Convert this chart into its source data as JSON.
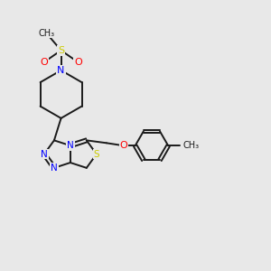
{
  "bg_color": "#e8e8e8",
  "bond_color": "#1a1a1a",
  "N_color": "#0000ff",
  "S_color": "#cccc00",
  "O_color": "#ff0000",
  "C_color": "#1a1a1a",
  "figsize": [
    3.0,
    3.0
  ],
  "dpi": 100,
  "lw": 1.4,
  "xlim": [
    0,
    10
  ],
  "ylim": [
    0,
    10
  ]
}
